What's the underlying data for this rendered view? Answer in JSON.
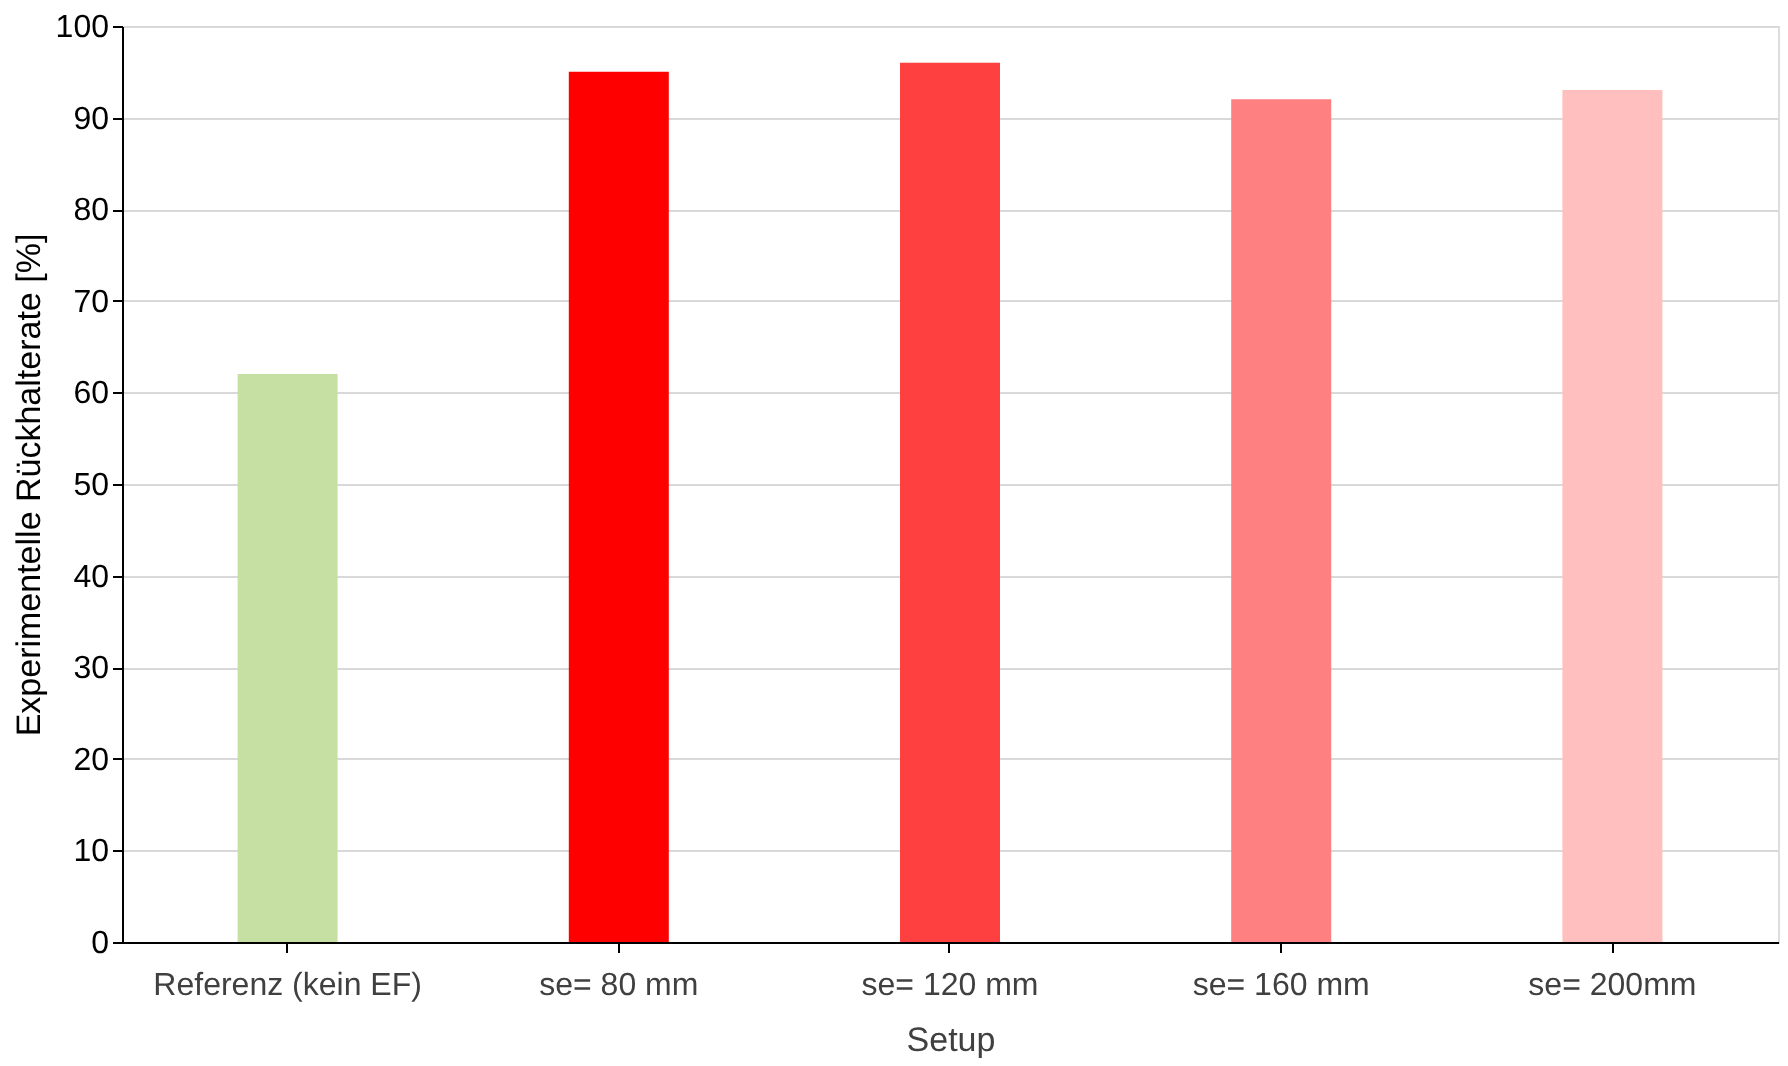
{
  "chart_data": {
    "type": "bar",
    "xlabel": "Setup",
    "ylabel": "Experimentelle Rückhalterate [%]",
    "categories": [
      "Referenz (kein EF)",
      "se= 80 mm",
      "se= 120 mm",
      "se= 160 mm",
      "se= 200mm"
    ],
    "values": [
      62,
      95,
      96,
      92,
      93
    ],
    "colors": [
      "#c6e0a4",
      "#ff0000",
      "#ff4040",
      "#ff8080",
      "#ffbfbf"
    ],
    "ylim": [
      0,
      100
    ],
    "yticks": [
      0,
      10,
      20,
      30,
      40,
      50,
      60,
      70,
      80,
      90,
      100
    ],
    "grid": "y"
  }
}
